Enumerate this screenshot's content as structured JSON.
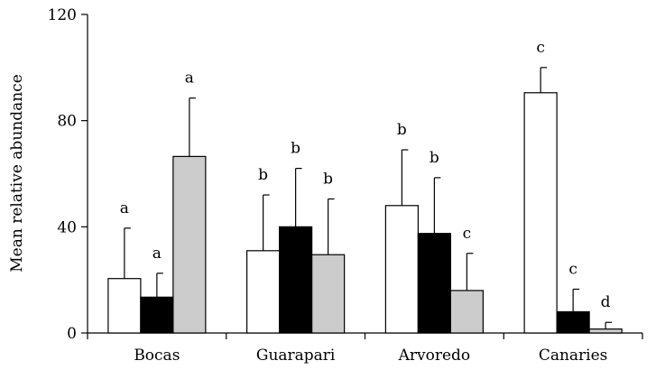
{
  "chart_data": {
    "type": "bar",
    "title": "",
    "xlabel": "",
    "ylabel": "Mean relative abundance",
    "ylim": [
      0,
      120
    ],
    "yticks": [
      0,
      40,
      80,
      120
    ],
    "grid": false,
    "legend": "none",
    "categories": [
      "Bocas",
      "Guarapari",
      "Arvoredo",
      "Canaries"
    ],
    "series": [
      {
        "fill": "#ffffff",
        "values": [
          20.5,
          31,
          48,
          90.5
        ],
        "error": [
          19,
          21,
          21,
          9.5
        ],
        "letters": [
          "a",
          "b",
          "b",
          "c"
        ]
      },
      {
        "fill": "#000000",
        "values": [
          13.5,
          40,
          37.5,
          8
        ],
        "error": [
          9,
          22,
          21,
          8.5
        ],
        "letters": [
          "a",
          "b",
          "b",
          "c"
        ]
      },
      {
        "fill": "#cccccc",
        "values": [
          66.5,
          29.5,
          16,
          1.5
        ],
        "error": [
          22,
          21,
          14,
          2.5
        ],
        "letters": [
          "a",
          "b",
          "c",
          "d"
        ]
      }
    ]
  }
}
